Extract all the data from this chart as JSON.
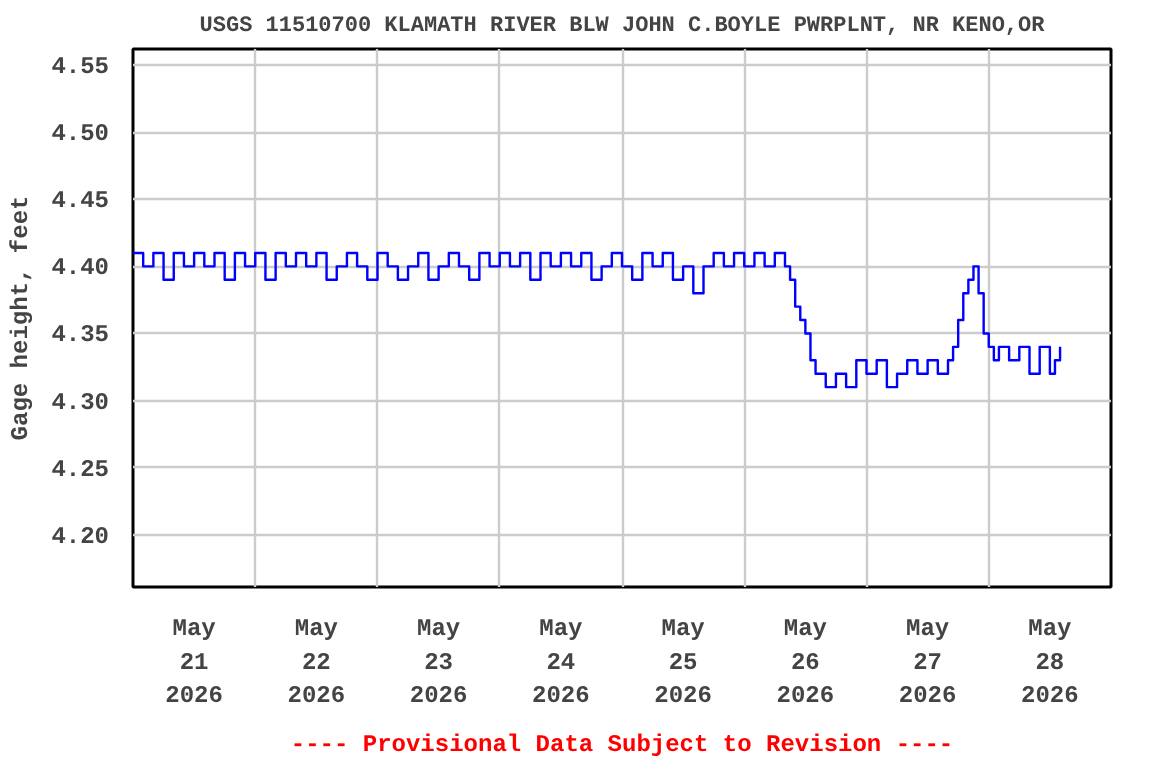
{
  "chart_data": {
    "type": "step",
    "title": "USGS 11510700 KLAMATH RIVER BLW JOHN C.BOYLE PWRPLNT, NR KENO,OR",
    "ylabel": "Gage height, feet",
    "annotations": [
      "---- Provisional Data Subject to Revision ----"
    ],
    "x": [
      "2026-05-21T00:00",
      "2026-05-21T02:00",
      "2026-05-21T04:00",
      "2026-05-21T06:00",
      "2026-05-21T08:00",
      "2026-05-21T10:00",
      "2026-05-21T12:00",
      "2026-05-21T14:00",
      "2026-05-21T16:00",
      "2026-05-21T18:00",
      "2026-05-21T20:00",
      "2026-05-21T22:00",
      "2026-05-22T00:00",
      "2026-05-22T02:00",
      "2026-05-22T04:00",
      "2026-05-22T06:00",
      "2026-05-22T08:00",
      "2026-05-22T10:00",
      "2026-05-22T12:00",
      "2026-05-22T14:00",
      "2026-05-22T16:00",
      "2026-05-22T18:00",
      "2026-05-22T20:00",
      "2026-05-22T22:00",
      "2026-05-23T00:00",
      "2026-05-23T02:00",
      "2026-05-23T04:00",
      "2026-05-23T06:00",
      "2026-05-23T08:00",
      "2026-05-23T10:00",
      "2026-05-23T12:00",
      "2026-05-23T14:00",
      "2026-05-23T16:00",
      "2026-05-23T18:00",
      "2026-05-23T20:00",
      "2026-05-23T22:00",
      "2026-05-24T00:00",
      "2026-05-24T02:00",
      "2026-05-24T04:00",
      "2026-05-24T06:00",
      "2026-05-24T08:00",
      "2026-05-24T10:00",
      "2026-05-24T12:00",
      "2026-05-24T14:00",
      "2026-05-24T16:00",
      "2026-05-24T18:00",
      "2026-05-24T20:00",
      "2026-05-24T22:00",
      "2026-05-25T00:00",
      "2026-05-25T02:00",
      "2026-05-25T04:00",
      "2026-05-25T06:00",
      "2026-05-25T08:00",
      "2026-05-25T10:00",
      "2026-05-25T12:00",
      "2026-05-25T14:00",
      "2026-05-25T16:00",
      "2026-05-25T18:00",
      "2026-05-25T20:00",
      "2026-05-25T22:00",
      "2026-05-26T00:00",
      "2026-05-26T02:00",
      "2026-05-26T04:00",
      "2026-05-26T06:00",
      "2026-05-26T08:00",
      "2026-05-26T09:00",
      "2026-05-26T10:00",
      "2026-05-26T11:00",
      "2026-05-26T12:00",
      "2026-05-26T13:00",
      "2026-05-26T14:00",
      "2026-05-26T15:00",
      "2026-05-26T16:00",
      "2026-05-26T18:00",
      "2026-05-26T20:00",
      "2026-05-26T22:00",
      "2026-05-27T00:00",
      "2026-05-27T02:00",
      "2026-05-27T04:00",
      "2026-05-27T06:00",
      "2026-05-27T08:00",
      "2026-05-27T10:00",
      "2026-05-27T12:00",
      "2026-05-27T14:00",
      "2026-05-27T16:00",
      "2026-05-27T17:00",
      "2026-05-27T18:00",
      "2026-05-27T19:00",
      "2026-05-27T20:00",
      "2026-05-27T21:00",
      "2026-05-27T22:00",
      "2026-05-27T23:00",
      "2026-05-28T00:00",
      "2026-05-28T01:00",
      "2026-05-28T02:00",
      "2026-05-28T04:00",
      "2026-05-28T06:00",
      "2026-05-28T08:00",
      "2026-05-28T10:00",
      "2026-05-28T12:00",
      "2026-05-28T13:00",
      "2026-05-28T14:00"
    ],
    "series": [
      {
        "color": "#0000ff",
        "values": [
          4.41,
          4.4,
          4.41,
          4.39,
          4.41,
          4.4,
          4.41,
          4.4,
          4.41,
          4.39,
          4.41,
          4.4,
          4.41,
          4.39,
          4.41,
          4.4,
          4.41,
          4.4,
          4.41,
          4.39,
          4.4,
          4.41,
          4.4,
          4.39,
          4.41,
          4.4,
          4.39,
          4.4,
          4.41,
          4.39,
          4.4,
          4.41,
          4.4,
          4.39,
          4.41,
          4.4,
          4.41,
          4.4,
          4.41,
          4.39,
          4.41,
          4.4,
          4.41,
          4.4,
          4.41,
          4.39,
          4.4,
          4.41,
          4.4,
          4.39,
          4.41,
          4.4,
          4.41,
          4.39,
          4.4,
          4.38,
          4.4,
          4.41,
          4.4,
          4.41,
          4.4,
          4.41,
          4.4,
          4.41,
          4.4,
          4.39,
          4.37,
          4.36,
          4.35,
          4.33,
          4.32,
          4.32,
          4.31,
          4.32,
          4.31,
          4.33,
          4.32,
          4.33,
          4.31,
          4.32,
          4.33,
          4.32,
          4.33,
          4.32,
          4.33,
          4.34,
          4.36,
          4.38,
          4.39,
          4.4,
          4.38,
          4.35,
          4.34,
          4.33,
          4.34,
          4.33,
          4.34,
          4.32,
          4.34,
          4.32,
          4.33,
          4.34
        ]
      }
    ],
    "xlim": [
      "2026-05-21T00:00",
      "2026-05-29T00:00"
    ],
    "xticks": [
      {
        "value": "2026-05-21T12:00",
        "label": "May\n21\n2026"
      },
      {
        "value": "2026-05-22T12:00",
        "label": "May\n22\n2026"
      },
      {
        "value": "2026-05-23T12:00",
        "label": "May\n23\n2026"
      },
      {
        "value": "2026-05-24T12:00",
        "label": "May\n24\n2026"
      },
      {
        "value": "2026-05-25T12:00",
        "label": "May\n25\n2026"
      },
      {
        "value": "2026-05-26T12:00",
        "label": "May\n26\n2026"
      },
      {
        "value": "2026-05-27T12:00",
        "label": "May\n27\n2026"
      },
      {
        "value": "2026-05-28T12:00",
        "label": "May\n28\n2026"
      },
      {
        "value": "2026-05-22T00:00",
        "label": null
      },
      {
        "value": "2026-05-23T00:00",
        "label": null
      },
      {
        "value": "2026-05-24T00:00",
        "label": null
      },
      {
        "value": "2026-05-25T00:00",
        "label": null
      },
      {
        "value": "2026-05-26T00:00",
        "label": null
      },
      {
        "value": "2026-05-27T00:00",
        "label": null
      },
      {
        "value": "2026-05-28T00:00",
        "label": null
      }
    ],
    "ylim": [
      4.161,
      4.562
    ],
    "yticks": [
      {
        "value": 4.2,
        "label": "4.20"
      },
      {
        "value": 4.25,
        "label": "4.25"
      },
      {
        "value": 4.3,
        "label": "4.30"
      },
      {
        "value": 4.35,
        "label": "4.35"
      },
      {
        "value": 4.4,
        "label": "4.40"
      },
      {
        "value": 4.45,
        "label": "4.45"
      },
      {
        "value": 4.5,
        "label": "4.50"
      },
      {
        "value": 4.55,
        "label": "4.55"
      }
    ],
    "grid": true
  }
}
